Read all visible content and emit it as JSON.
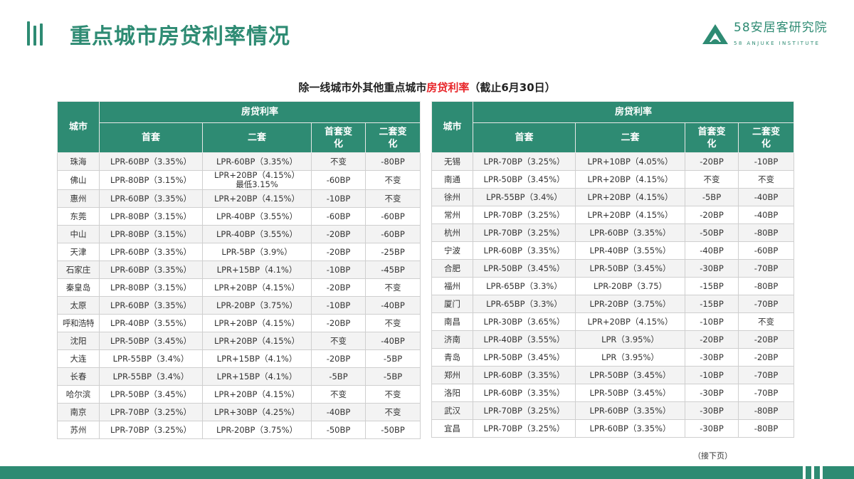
{
  "header": {
    "title": "重点城市房贷利率情况",
    "logo_cn": "58安居客研究院",
    "logo_en": "58 ANJUKE INSTITUTE"
  },
  "subtitle": {
    "prefix": "除一线城市外其他重点城市",
    "highlight": "房贷利率",
    "suffix": "（截止6月30日）"
  },
  "colors": {
    "brand": "#2e8b73",
    "highlight": "#e8262a"
  },
  "columns": {
    "city": "城市",
    "rate_group": "房贷利率",
    "first": "首套",
    "second": "二套",
    "first_change": "首套变化",
    "second_change": "二套变化"
  },
  "left_rows": [
    [
      "珠海",
      "LPR-60BP（3.35%）",
      "LPR-60BP（3.35%）",
      "不变",
      "-80BP"
    ],
    [
      "佛山",
      "LPR-80BP（3.15%）",
      "LPR+20BP（4.15%）\n最低3.15%",
      "-60BP",
      "不变"
    ],
    [
      "惠州",
      "LPR-60BP（3.35%）",
      "LPR+20BP（4.15%）",
      "-10BP",
      "不变"
    ],
    [
      "东莞",
      "LPR-80BP（3.15%）",
      "LPR-40BP（3.55%）",
      "-60BP",
      "-60BP"
    ],
    [
      "中山",
      "LPR-80BP（3.15%）",
      "LPR-40BP（3.55%）",
      "-20BP",
      "-60BP"
    ],
    [
      "天津",
      "LPR-60BP（3.35%）",
      "LPR-5BP（3.9%）",
      "-20BP",
      "-25BP"
    ],
    [
      "石家庄",
      "LPR-60BP（3.35%）",
      "LPR+15BP（4.1%）",
      "-10BP",
      "-45BP"
    ],
    [
      "秦皇岛",
      "LPR-80BP（3.15%）",
      "LPR+20BP（4.15%）",
      "-20BP",
      "不变"
    ],
    [
      "太原",
      "LPR-60BP（3.35%）",
      "LPR-20BP（3.75%）",
      "-10BP",
      "-40BP"
    ],
    [
      "呼和浩特",
      "LPR-40BP（3.55%）",
      "LPR+20BP（4.15%）",
      "-20BP",
      "不变"
    ],
    [
      "沈阳",
      "LPR-50BP（3.45%）",
      "LPR+20BP（4.15%）",
      "不变",
      "-40BP"
    ],
    [
      "大连",
      "LPR-55BP（3.4%）",
      "LPR+15BP（4.1%）",
      "-20BP",
      "-5BP"
    ],
    [
      "长春",
      "LPR-55BP（3.4%）",
      "LPR+15BP（4.1%）",
      "-5BP",
      "-5BP"
    ],
    [
      "哈尔滨",
      "LPR-50BP（3.45%）",
      "LPR+20BP（4.15%）",
      "不变",
      "不变"
    ],
    [
      "南京",
      "LPR-70BP（3.25%）",
      "LPR+30BP（4.25%）",
      "-40BP",
      "不变"
    ],
    [
      "苏州",
      "LPR-70BP（3.25%）",
      "LPR-20BP（3.75%）",
      "-50BP",
      "-50BP"
    ]
  ],
  "right_rows": [
    [
      "无锡",
      "LPR-70BP（3.25%）",
      "LPR+10BP（4.05%）",
      "-20BP",
      "-10BP"
    ],
    [
      "南通",
      "LPR-50BP（3.45%）",
      "LPR+20BP（4.15%）",
      "不变",
      "不变"
    ],
    [
      "徐州",
      "LPR-55BP（3.4%）",
      "LPR+20BP（4.15%）",
      "-5BP",
      "-40BP"
    ],
    [
      "常州",
      "LPR-70BP（3.25%）",
      "LPR+20BP（4.15%）",
      "-20BP",
      "-40BP"
    ],
    [
      "杭州",
      "LPR-70BP（3.25%）",
      "LPR-60BP（3.35%）",
      "-50BP",
      "-80BP"
    ],
    [
      "宁波",
      "LPR-60BP（3.35%）",
      "LPR-40BP（3.55%）",
      "-40BP",
      "-60BP"
    ],
    [
      "合肥",
      "LPR-50BP（3.45%）",
      "LPR-50BP（3.45%）",
      "-30BP",
      "-70BP"
    ],
    [
      "福州",
      "LPR-65BP（3.3%）",
      "LPR-20BP（3.75）",
      "-15BP",
      "-80BP"
    ],
    [
      "厦门",
      "LPR-65BP（3.3%）",
      "LPR-20BP（3.75%）",
      "-15BP",
      "-70BP"
    ],
    [
      "南昌",
      "LPR-30BP（3.65%）",
      "LPR+20BP（4.15%）",
      "-10BP",
      "不变"
    ],
    [
      "济南",
      "LPR-40BP（3.55%）",
      "LPR（3.95%）",
      "-20BP",
      "-20BP"
    ],
    [
      "青岛",
      "LPR-50BP（3.45%）",
      "LPR（3.95%）",
      "-30BP",
      "-20BP"
    ],
    [
      "郑州",
      "LPR-60BP（3.35%）",
      "LPR-50BP（3.45%）",
      "-10BP",
      "-70BP"
    ],
    [
      "洛阳",
      "LPR-60BP（3.35%）",
      "LPR-50BP（3.45%）",
      "-30BP",
      "-70BP"
    ],
    [
      "武汉",
      "LPR-70BP（3.25%）",
      "LPR-60BP（3.35%）",
      "-30BP",
      "-80BP"
    ],
    [
      "宜昌",
      "LPR-70BP（3.25%）",
      "LPR-60BP（3.35%）",
      "-30BP",
      "-80BP"
    ]
  ],
  "footnote": "（接下页）"
}
